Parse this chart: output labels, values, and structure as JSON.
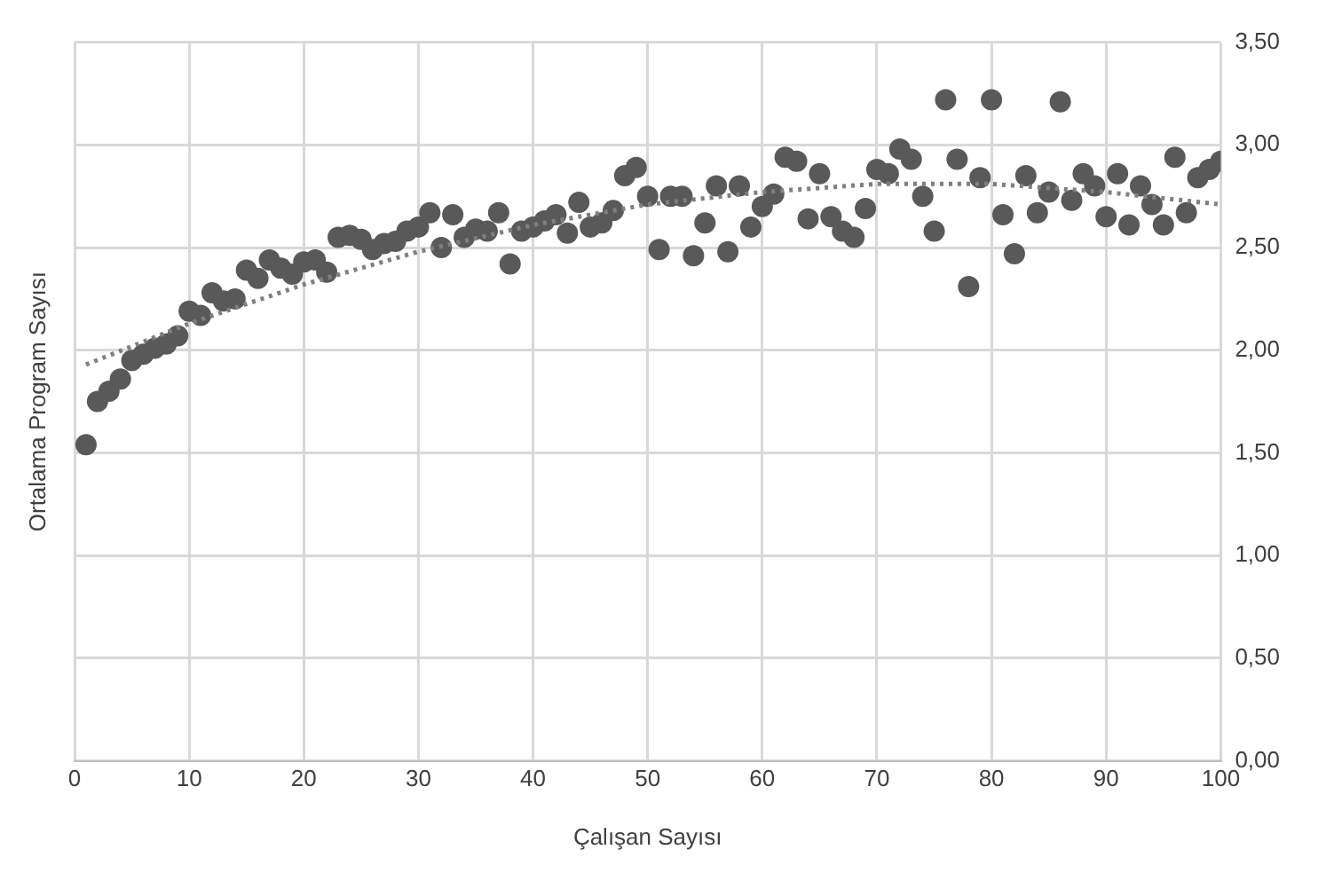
{
  "chart_data": {
    "type": "scatter",
    "xlabel": "Çalışan Sayısı",
    "ylabel": "Ortalama Program Sayısı",
    "xlim": [
      0,
      100
    ],
    "xticks": [
      0,
      10,
      20,
      30,
      40,
      50,
      60,
      70,
      80,
      90,
      100
    ],
    "ylim": [
      0,
      3.5
    ],
    "yticks": [
      {
        "value": 0,
        "label": "0,00"
      },
      {
        "value": 0.5,
        "label": "0,50"
      },
      {
        "value": 1,
        "label": "1,00"
      },
      {
        "value": 1.5,
        "label": "1,50"
      },
      {
        "value": 2,
        "label": "2,00"
      },
      {
        "value": 2.5,
        "label": "2,50"
      },
      {
        "value": 3,
        "label": "3,00"
      },
      {
        "value": 3.5,
        "label": "3,50"
      }
    ],
    "grid": true,
    "legend": false,
    "marker": "circle",
    "x": [
      1,
      2,
      3,
      4,
      5,
      6,
      7,
      8,
      9,
      10,
      11,
      12,
      13,
      14,
      15,
      16,
      17,
      18,
      19,
      20,
      21,
      22,
      23,
      24,
      25,
      26,
      27,
      28,
      29,
      30,
      31,
      32,
      33,
      34,
      35,
      36,
      37,
      38,
      39,
      40,
      41,
      42,
      43,
      44,
      45,
      46,
      47,
      48,
      49,
      50,
      51,
      52,
      53,
      54,
      55,
      56,
      57,
      58,
      59,
      60,
      61,
      62,
      63,
      64,
      65,
      66,
      67,
      68,
      69,
      70,
      71,
      72,
      73,
      74,
      75,
      76,
      77,
      78,
      79,
      80,
      81,
      82,
      83,
      84,
      85,
      86,
      87,
      88,
      89,
      90,
      91,
      92,
      93,
      94,
      95,
      96,
      97,
      98,
      99,
      100
    ],
    "series": [
      {
        "color": "#595959",
        "values": [
          1.54,
          1.75,
          1.8,
          1.86,
          1.95,
          1.98,
          2.01,
          2.03,
          2.07,
          2.19,
          2.17,
          2.28,
          2.24,
          2.25,
          2.39,
          2.35,
          2.44,
          2.4,
          2.37,
          2.43,
          2.44,
          2.38,
          2.55,
          2.56,
          2.54,
          2.49,
          2.52,
          2.53,
          2.58,
          2.6,
          2.67,
          2.5,
          2.66,
          2.55,
          2.59,
          2.58,
          2.67,
          2.42,
          2.58,
          2.6,
          2.63,
          2.66,
          2.57,
          2.72,
          2.6,
          2.62,
          2.68,
          2.85,
          2.89,
          2.75,
          2.49,
          2.75,
          2.75,
          2.46,
          2.62,
          2.8,
          2.48,
          2.8,
          2.6,
          2.7,
          2.76,
          2.94,
          2.92,
          2.64,
          2.86,
          2.65,
          2.58,
          2.55,
          2.69,
          2.88,
          2.86,
          2.98,
          2.93,
          2.75,
          2.58,
          3.22,
          2.93,
          2.31,
          2.84,
          3.22,
          2.66,
          2.47,
          2.85,
          2.67,
          2.77,
          3.21,
          2.73,
          2.86,
          2.8,
          2.65,
          2.86,
          2.61,
          2.8,
          2.71,
          2.61,
          2.94,
          2.67,
          2.84,
          2.88,
          2.92
        ]
      },
      {
        "type": "line",
        "color": "#7f7f7f",
        "line_style": "dotted",
        "marker": "none",
        "x": [
          1,
          10,
          20,
          30,
          40,
          50,
          60,
          70,
          80,
          90,
          100
        ],
        "values": [
          1.93,
          2.13,
          2.32,
          2.48,
          2.61,
          2.71,
          2.77,
          2.81,
          2.81,
          2.77,
          2.71
        ]
      }
    ]
  }
}
